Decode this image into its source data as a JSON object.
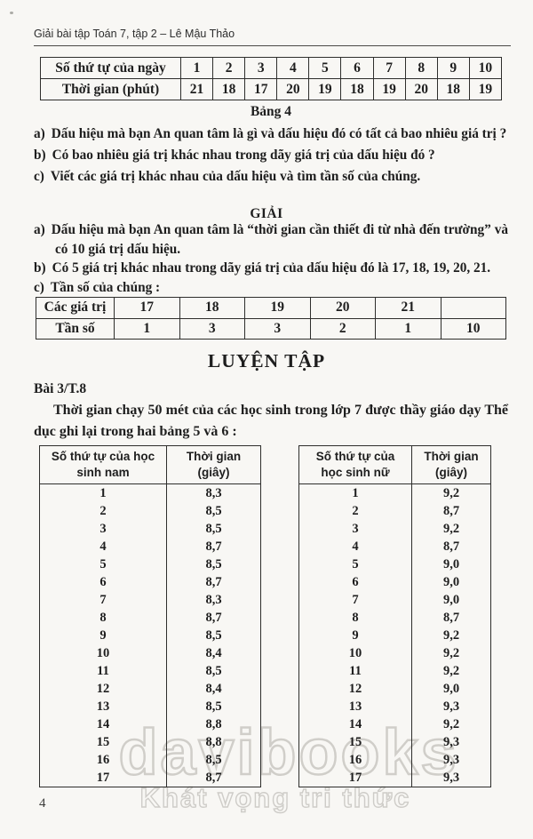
{
  "page": {
    "header_title": "Giải bài tập Toán 7, tập 2 – Lê Mậu Thảo",
    "page_number": "4",
    "watermark": {
      "brand": "davibooks",
      "slogan": "Khát vọng tri thức"
    }
  },
  "daily_table": {
    "row1_label": "Số thứ tự của ngày",
    "row1_values": [
      "1",
      "2",
      "3",
      "4",
      "5",
      "6",
      "7",
      "8",
      "9",
      "10"
    ],
    "row2_label": "Thời gian (phút)",
    "row2_values": [
      "21",
      "18",
      "17",
      "20",
      "19",
      "18",
      "19",
      "20",
      "18",
      "19"
    ],
    "caption": "Bảng 4"
  },
  "problem": {
    "items": [
      {
        "label": "a)",
        "text": "Dấu hiệu mà bạn An quan tâm là gì và dấu hiệu đó có tất cả bao nhiêu giá trị ?"
      },
      {
        "label": "b)",
        "text": "Có bao nhiêu giá trị khác nhau trong dãy giá trị của dấu hiệu đó ?"
      },
      {
        "label": "c)",
        "text": "Viết các giá trị khác nhau của dấu hiệu và tìm tần số của chúng."
      }
    ]
  },
  "solution": {
    "heading": "GIẢI",
    "items": [
      {
        "label": "a)",
        "text": "Dấu hiệu mà bạn An quan tâm là “thời gian cần thiết đi từ nhà đến trường” và có 10 giá trị dấu hiệu."
      },
      {
        "label": "b)",
        "text": "Có 5 giá trị khác nhau trong dãy giá trị của dấu hiệu đó là 17, 18, 19, 20, 21."
      },
      {
        "label": "c)",
        "text": "Tần số của chúng :"
      }
    ]
  },
  "freq_table": {
    "row1_label": "Các giá trị",
    "row1_values": [
      "17",
      "18",
      "19",
      "20",
      "21",
      ""
    ],
    "row2_label": "Tần số",
    "row2_values": [
      "1",
      "3",
      "3",
      "2",
      "1",
      "10"
    ]
  },
  "practice": {
    "heading": "LUYỆN TẬP",
    "exercise_label": "Bài 3/T.8",
    "exercise_text": "Thời gian chạy 50 mét của các học sinh trong lớp 7 được thầy giáo dạy Thể dục ghi lại trong hai bảng 5 và 6 :"
  },
  "boys_table": {
    "col1_header": "Số thứ tự của học\nsinh nam",
    "col2_header": "Thời gian\n(giây)",
    "rows": [
      [
        "1",
        "8,3"
      ],
      [
        "2",
        "8,5"
      ],
      [
        "3",
        "8,5"
      ],
      [
        "4",
        "8,7"
      ],
      [
        "5",
        "8,5"
      ],
      [
        "6",
        "8,7"
      ],
      [
        "7",
        "8,3"
      ],
      [
        "8",
        "8,7"
      ],
      [
        "9",
        "8,5"
      ],
      [
        "10",
        "8,4"
      ],
      [
        "11",
        "8,5"
      ],
      [
        "12",
        "8,4"
      ],
      [
        "13",
        "8,5"
      ],
      [
        "14",
        "8,8"
      ],
      [
        "15",
        "8,8"
      ],
      [
        "16",
        "8,5"
      ],
      [
        "17",
        "8,7"
      ]
    ]
  },
  "girls_table": {
    "col1_header": "Số thứ tự của\nhọc sinh nữ",
    "col2_header": "Thời gian\n(giây)",
    "rows": [
      [
        "1",
        "9,2"
      ],
      [
        "2",
        "8,7"
      ],
      [
        "3",
        "9,2"
      ],
      [
        "4",
        "8,7"
      ],
      [
        "5",
        "9,0"
      ],
      [
        "6",
        "9,0"
      ],
      [
        "7",
        "9,0"
      ],
      [
        "8",
        "8,7"
      ],
      [
        "9",
        "9,2"
      ],
      [
        "10",
        "9,2"
      ],
      [
        "11",
        "9,2"
      ],
      [
        "12",
        "9,0"
      ],
      [
        "13",
        "9,3"
      ],
      [
        "14",
        "9,2"
      ],
      [
        "15",
        "9,3"
      ],
      [
        "16",
        "9,3"
      ],
      [
        "17",
        "9,3"
      ]
    ]
  }
}
